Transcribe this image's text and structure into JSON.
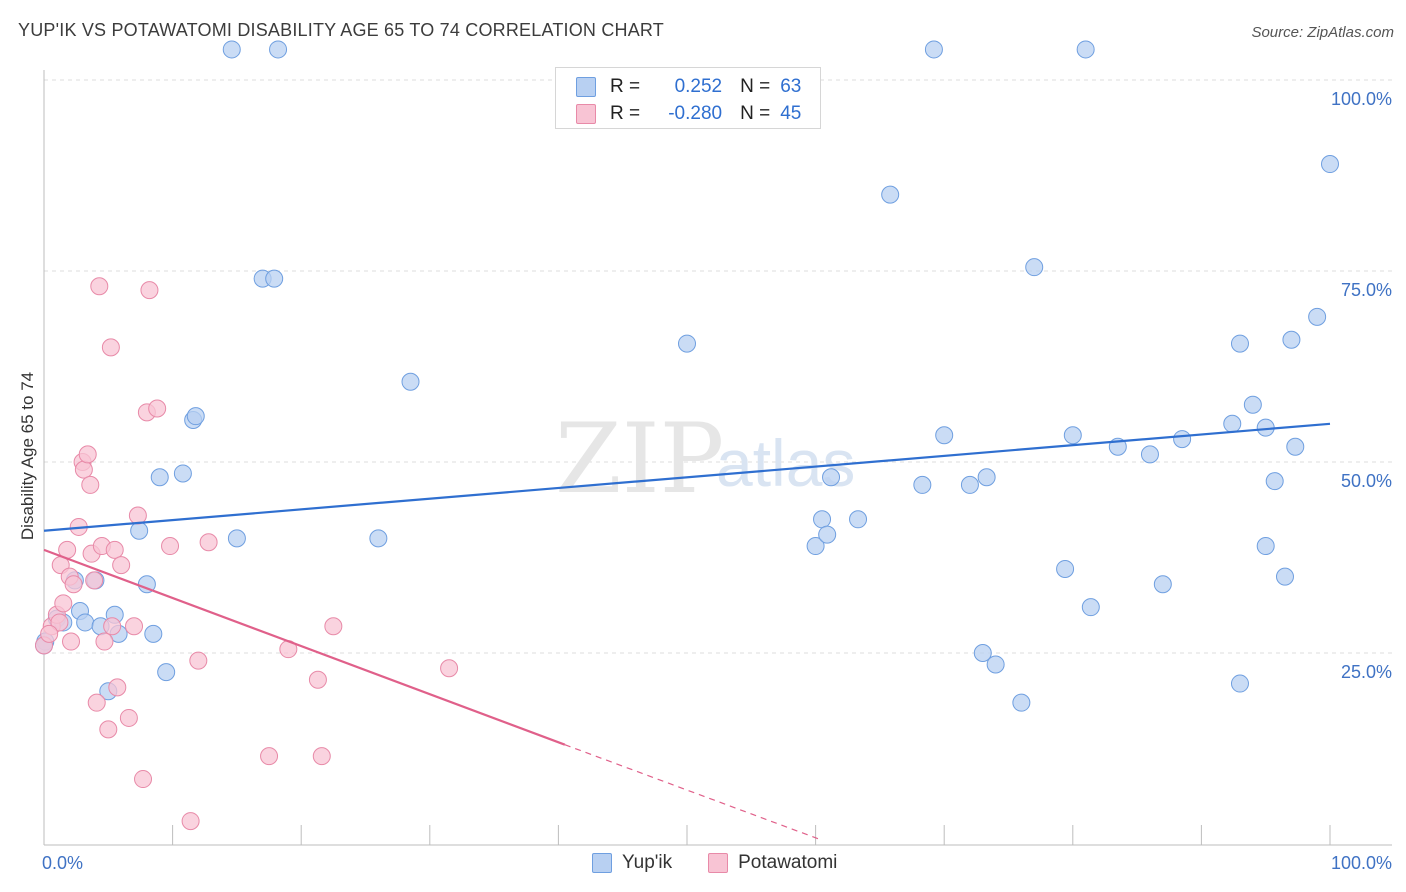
{
  "header": {
    "title": "YUP'IK VS POTAWATOMI DISABILITY AGE 65 TO 74 CORRELATION CHART",
    "source": "Source: ZipAtlas.com"
  },
  "watermark": {
    "zip": "ZIP",
    "atlas": "atlas"
  },
  "legend": {
    "rows": [
      {
        "r_label": "R =",
        "r_value": "0.252",
        "n_label": "N =",
        "n_value": "63"
      },
      {
        "r_label": "R =",
        "r_value": "-0.280",
        "n_label": "N =",
        "n_value": "45"
      }
    ]
  },
  "bottom_legend": {
    "series1": "Yup'ik",
    "series2": "Potawatomi"
  },
  "colors": {
    "blue_fill": "#b8d0f2",
    "blue_stroke": "#6f9fe0",
    "blue_line": "#2f6fd0",
    "pink_fill": "#f8c4d4",
    "pink_stroke": "#e88aa8",
    "pink_line": "#e0608a",
    "grid": "#dcdcdc",
    "tick_text": "#3f72c4"
  },
  "chart_data": {
    "type": "scatter",
    "title": "YUP'IK VS POTAWATOMI DISABILITY AGE 65 TO 74 CORRELATION CHART",
    "xlabel": "",
    "ylabel": "Disability Age 65 to 74",
    "xlim": [
      0,
      100
    ],
    "ylim": [
      0,
      105
    ],
    "x_tick_labels": [
      "0.0%",
      "100.0%"
    ],
    "y_ticks": [
      25,
      50,
      75,
      100
    ],
    "y_tick_labels": [
      "25.0%",
      "50.0%",
      "75.0%",
      "100.0%"
    ],
    "series": [
      {
        "name": "Yup'ik",
        "r": 0.252,
        "n": 63,
        "trend": {
          "x0": 0,
          "y0": 41.0,
          "x1": 100,
          "y1": 55.0
        },
        "points": [
          [
            0.1,
            26.5
          ],
          [
            1.0,
            29.5
          ],
          [
            1.5,
            29.0
          ],
          [
            2.4,
            34.5
          ],
          [
            2.8,
            30.5
          ],
          [
            3.2,
            29.0
          ],
          [
            4.0,
            34.5
          ],
          [
            4.4,
            28.5
          ],
          [
            5.0,
            20.0
          ],
          [
            5.5,
            30.0
          ],
          [
            5.8,
            27.5
          ],
          [
            7.4,
            41.0
          ],
          [
            8.0,
            34.0
          ],
          [
            8.5,
            27.5
          ],
          [
            9.0,
            48.0
          ],
          [
            9.5,
            22.5
          ],
          [
            10.8,
            48.5
          ],
          [
            11.6,
            55.5
          ],
          [
            11.8,
            56.0
          ],
          [
            14.6,
            104.0
          ],
          [
            15.0,
            40.0
          ],
          [
            17.0,
            74.0
          ],
          [
            17.9,
            74.0
          ],
          [
            18.2,
            104.0
          ],
          [
            26.0,
            40.0
          ],
          [
            28.5,
            60.5
          ],
          [
            50.0,
            65.5
          ],
          [
            60.0,
            39.0
          ],
          [
            60.5,
            42.5
          ],
          [
            60.9,
            40.5
          ],
          [
            61.2,
            48.0
          ],
          [
            63.3,
            42.5
          ],
          [
            65.8,
            85.0
          ],
          [
            68.3,
            47.0
          ],
          [
            69.2,
            104.0
          ],
          [
            70.0,
            53.5
          ],
          [
            72.0,
            47.0
          ],
          [
            73.0,
            25.0
          ],
          [
            73.3,
            48.0
          ],
          [
            74.0,
            23.5
          ],
          [
            76.0,
            18.5
          ],
          [
            77.0,
            75.5
          ],
          [
            79.4,
            36.0
          ],
          [
            80.0,
            53.5
          ],
          [
            81.0,
            104.0
          ],
          [
            81.4,
            31.0
          ],
          [
            83.5,
            52.0
          ],
          [
            86.0,
            51.0
          ],
          [
            87.0,
            34.0
          ],
          [
            88.5,
            53.0
          ],
          [
            92.4,
            55.0
          ],
          [
            93.0,
            21.0
          ],
          [
            93.0,
            65.5
          ],
          [
            94.0,
            57.5
          ],
          [
            95.0,
            54.5
          ],
          [
            95.0,
            39.0
          ],
          [
            95.7,
            47.5
          ],
          [
            96.5,
            35.0
          ],
          [
            97.0,
            66.0
          ],
          [
            97.3,
            52.0
          ],
          [
            99.0,
            69.0
          ],
          [
            100.0,
            89.0
          ],
          [
            0.0,
            26.0
          ]
        ]
      },
      {
        "name": "Potawatomi",
        "r": -0.28,
        "n": 45,
        "trend": {
          "x0": 0,
          "y0": 38.5,
          "x1": 40.5,
          "y1": 13.0
        },
        "trend_dashed": {
          "x0": 40.5,
          "y0": 13.0,
          "x1": 60.5,
          "y1": 0.5
        },
        "points": [
          [
            0.0,
            26.0
          ],
          [
            0.6,
            28.5
          ],
          [
            1.0,
            30.0
          ],
          [
            1.3,
            36.5
          ],
          [
            1.5,
            31.5
          ],
          [
            1.8,
            38.5
          ],
          [
            2.0,
            35.0
          ],
          [
            2.1,
            26.5
          ],
          [
            2.3,
            34.0
          ],
          [
            2.7,
            41.5
          ],
          [
            3.0,
            50.0
          ],
          [
            3.1,
            49.0
          ],
          [
            3.4,
            51.0
          ],
          [
            3.6,
            47.0
          ],
          [
            3.7,
            38.0
          ],
          [
            3.9,
            34.5
          ],
          [
            4.1,
            18.5
          ],
          [
            4.3,
            73.0
          ],
          [
            4.5,
            39.0
          ],
          [
            4.7,
            26.5
          ],
          [
            5.0,
            15.0
          ],
          [
            5.2,
            65.0
          ],
          [
            5.3,
            28.5
          ],
          [
            5.5,
            38.5
          ],
          [
            5.7,
            20.5
          ],
          [
            6.0,
            36.5
          ],
          [
            6.6,
            16.5
          ],
          [
            7.0,
            28.5
          ],
          [
            7.3,
            43.0
          ],
          [
            7.7,
            8.5
          ],
          [
            8.0,
            56.5
          ],
          [
            8.2,
            72.5
          ],
          [
            8.8,
            57.0
          ],
          [
            9.8,
            39.0
          ],
          [
            11.4,
            3.0
          ],
          [
            12.0,
            24.0
          ],
          [
            12.8,
            39.5
          ],
          [
            17.5,
            11.5
          ],
          [
            19.0,
            25.5
          ],
          [
            21.3,
            21.5
          ],
          [
            21.6,
            11.5
          ],
          [
            22.5,
            28.5
          ],
          [
            31.5,
            23.0
          ],
          [
            1.2,
            29.0
          ],
          [
            0.4,
            27.5
          ]
        ]
      }
    ]
  }
}
